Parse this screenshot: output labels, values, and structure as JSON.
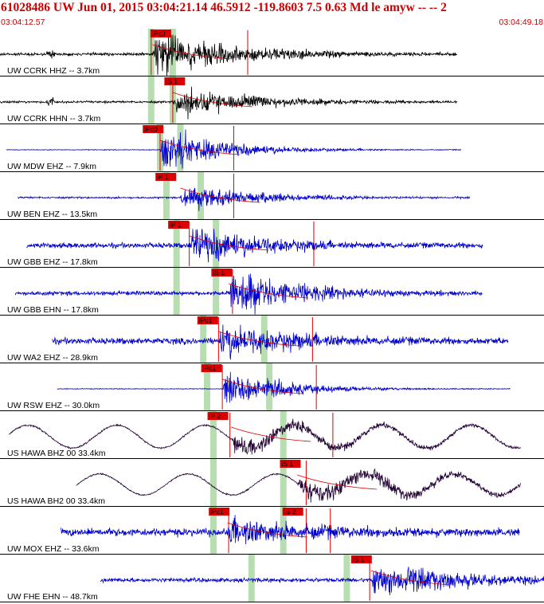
{
  "header": {
    "title": "61028486 UW Jun 01, 2015 03:04:21.14   46.5912 -119.8603  7.5 0.63 Md le amyw -- --   2",
    "start_time": "03:04:12.57",
    "end_time": "03:04:49.18"
  },
  "colors": {
    "header_text": "#cc0000",
    "trace_black": "#000000",
    "trace_blue": "#0000cc",
    "trace_purple": "#220033",
    "pick_red": "#dd0000",
    "window_green": "#b8ddb0"
  },
  "chart_data": {
    "type": "seismogram",
    "time_axis": {
      "start": "03:04:12.57",
      "end": "03:04:49.18",
      "seconds": 36.61
    },
    "traces": [
      {
        "label": "UW CCRK HHZ -- 3.7km",
        "color": "black",
        "start": 0.0,
        "end": 36.0,
        "noise": 0.08,
        "onset": 12.0,
        "amp": 0.85,
        "decay": 7,
        "lowfreq": 0,
        "pre_event": 4.0,
        "picks": [
          {
            "label": "iPc0",
            "t": 11.9
          }
        ],
        "green": [
          11.9,
          13.6
        ],
        "red_lines": [
          11.9,
          19.5
        ]
      },
      {
        "label": "UW CCRK HHN -- 3.7km",
        "color": "black",
        "start": 0.0,
        "end": 36.0,
        "noise": 0.06,
        "onset": 13.6,
        "amp": 0.55,
        "decay": 7,
        "lowfreq": 0,
        "pre_event": 4.0,
        "picks": [
          {
            "label": "iS 1",
            "t": 13.0
          }
        ],
        "green": [
          11.9,
          13.6
        ],
        "red_lines": [
          13.6
        ]
      },
      {
        "label": "UW MDW EHZ -- 7.9km",
        "color": "blue",
        "start": 0.5,
        "end": 36.3,
        "noise": 0.02,
        "onset": 12.6,
        "amp": 0.85,
        "decay": 5,
        "lowfreq": 0,
        "pre_event": 0,
        "picks": [
          {
            "label": "iPc0",
            "t": 11.3
          }
        ],
        "green": [
          12.6,
          14.2
        ],
        "red_lines": [
          12.6,
          18.4
        ]
      },
      {
        "label": "UW BEN EHZ -- 13.5km",
        "color": "blue",
        "start": 1.4,
        "end": 37.0,
        "noise": 0.05,
        "onset": 14.2,
        "amp": 0.55,
        "decay": 6,
        "lowfreq": 0,
        "pre_event": 0,
        "picks": [
          {
            "label": "iP 1",
            "t": 12.3
          }
        ],
        "green": [
          13.1,
          15.8
        ],
        "red_lines": [
          18.4
        ]
      },
      {
        "label": "UW GBB EHZ -- 17.8km",
        "color": "blue",
        "start": 2.1,
        "end": 38.0,
        "noise": 0.15,
        "onset": 14.9,
        "amp": 0.8,
        "decay": 6,
        "lowfreq": 0,
        "pre_event": 0,
        "picks": [
          {
            "label": "iP 1",
            "t": 13.3
          }
        ],
        "green": [
          13.9,
          17.0
        ],
        "red_lines": [
          14.9,
          24.7
        ]
      },
      {
        "label": "UW GBB EHN -- 17.8km",
        "color": "blue",
        "start": 1.2,
        "end": 38.0,
        "noise": 0.12,
        "onset": 18.0,
        "amp": 0.9,
        "decay": 6,
        "lowfreq": 0,
        "pre_event": 0,
        "picks": [
          {
            "label": "iS 1",
            "t": 16.7
          }
        ],
        "green": [
          13.9,
          17.0
        ],
        "red_lines": [
          18.3
        ]
      },
      {
        "label": "UW WA2 EHZ -- 28.9km",
        "color": "blue",
        "start": 4.1,
        "end": 40.0,
        "noise": 0.18,
        "onset": 17.2,
        "amp": 0.7,
        "decay": 7,
        "lowfreq": 0,
        "pre_event": 0,
        "picks": [
          {
            "label": "iPc1",
            "t": 15.6
          }
        ],
        "green": [
          16.0,
          20.8
        ],
        "red_lines": [
          17.2,
          24.6
        ]
      },
      {
        "label": "UW RSW EHZ -- 30.0km",
        "color": "blue",
        "start": 4.5,
        "end": 40.2,
        "noise": 0.02,
        "onset": 17.5,
        "amp": 0.7,
        "decay": 5,
        "lowfreq": 0,
        "pre_event": 0,
        "picks": [
          {
            "label": "iPc1",
            "t": 15.9
          }
        ],
        "green": [
          16.3,
          21.2
        ],
        "red_lines": [
          17.5,
          24.9
        ]
      },
      {
        "label": "US HAWA BHZ 00 33.4km",
        "color": "purple",
        "start": 0.7,
        "end": 41.0,
        "noise": 0.05,
        "onset": 18.2,
        "amp": 0.35,
        "decay": 10,
        "lowfreq": 0.65,
        "pre_event": 0,
        "picks": [
          {
            "label": "iP 2",
            "t": 16.4
          }
        ],
        "green": [
          16.8,
          22.3
        ],
        "red_lines": [
          18.1,
          26.2
        ]
      },
      {
        "label": "US HAWA BH2 00 33.4km",
        "color": "purple",
        "start": 6.0,
        "end": 41.0,
        "noise": 0.04,
        "onset": 23.4,
        "amp": 0.45,
        "decay": 10,
        "lowfreq": 0.6,
        "pre_event": 0,
        "picks": [
          {
            "label": "iS 1",
            "t": 22.1
          }
        ],
        "green": [
          16.8,
          22.3
        ],
        "red_lines": [
          24.1
        ]
      },
      {
        "label": "UW MOX EHZ -- 33.6km",
        "color": "blue",
        "start": 4.8,
        "end": 40.9,
        "noise": 0.22,
        "onset": 17.9,
        "amp": 0.55,
        "decay": 8,
        "lowfreq": 0,
        "pre_event": 0,
        "picks": [
          {
            "label": "iPc1",
            "t": 16.5
          },
          {
            "label": "iS 2",
            "t": 22.3
          }
        ],
        "green": [
          16.8,
          22.3
        ],
        "red_lines": [
          18.0,
          24.1,
          26.0
        ]
      },
      {
        "label": "UW FHE EHN -- 48.7km",
        "color": "blue",
        "start": 7.9,
        "end": 43.0,
        "noise": 0.12,
        "onset": 29.2,
        "amp": 0.65,
        "decay": 8,
        "lowfreq": 0,
        "pre_event": 0,
        "picks": [
          {
            "label": "iS 1",
            "t": 27.7
          }
        ],
        "green": [
          19.8,
          27.3
        ],
        "red_lines": [
          29.1
        ]
      }
    ]
  }
}
